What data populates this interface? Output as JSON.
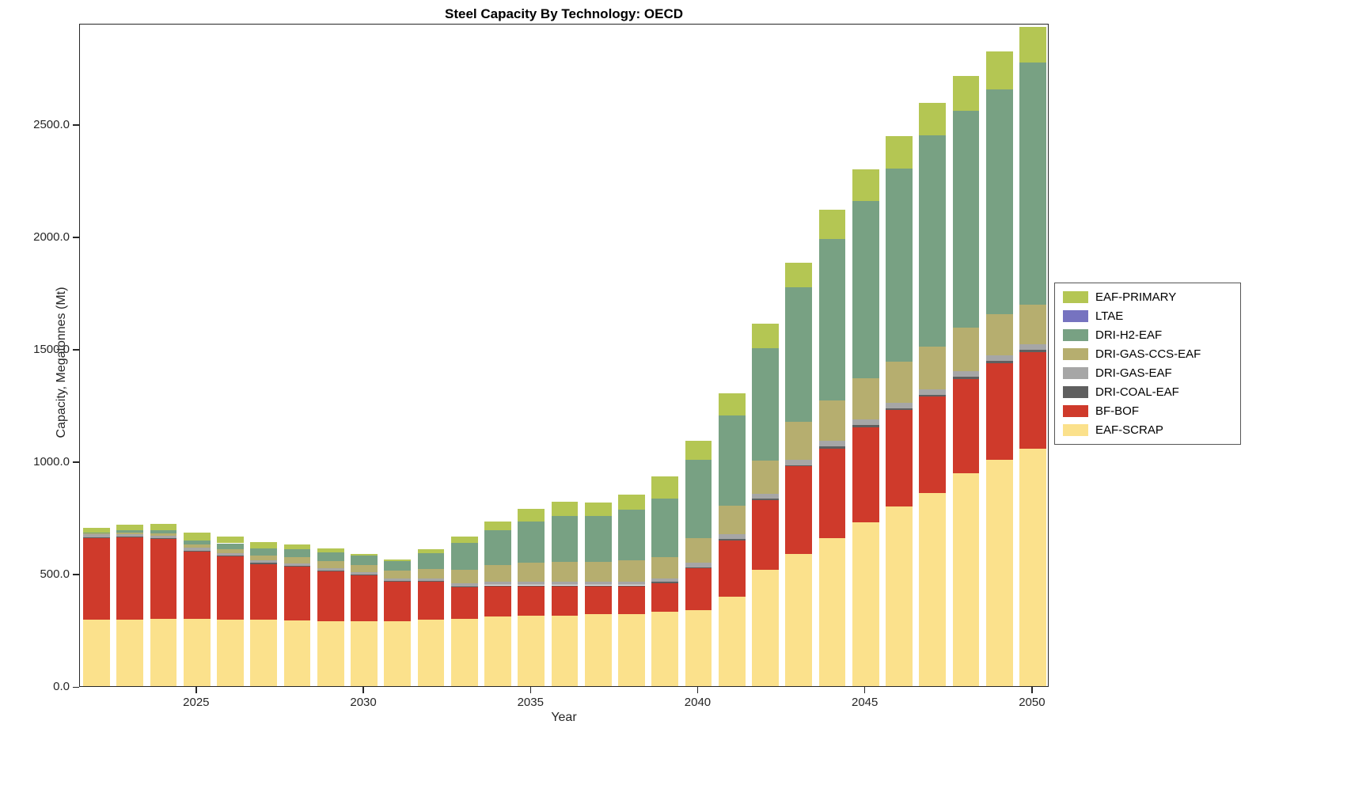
{
  "chart_data": {
    "type": "bar",
    "stacked": true,
    "title": "Steel Capacity By Technology: OECD",
    "xlabel": "Year",
    "ylabel": "Capacity, Megatonnes (Mt)",
    "ylim": [
      0,
      2950
    ],
    "grid": false,
    "legend_position": "right-outside",
    "yticks": [
      0,
      500,
      1000,
      1500,
      2000,
      2500
    ],
    "ytick_labels": [
      "0.0",
      "500.0",
      "1000.0",
      "1500.0",
      "2000.0",
      "2500.0"
    ],
    "xticks": [
      2025,
      2030,
      2035,
      2040,
      2045,
      2050
    ],
    "categories": [
      2022,
      2023,
      2024,
      2025,
      2026,
      2027,
      2028,
      2029,
      2030,
      2031,
      2032,
      2033,
      2034,
      2035,
      2036,
      2037,
      2038,
      2039,
      2040,
      2041,
      2042,
      2043,
      2044,
      2045,
      2046,
      2047,
      2048,
      2049,
      2050
    ],
    "series": [
      {
        "name": "EAF-SCRAP",
        "color": "#fbe18c",
        "values": [
          295,
          298,
          300,
          300,
          298,
          295,
          292,
          290,
          288,
          290,
          295,
          300,
          310,
          315,
          315,
          320,
          320,
          330,
          340,
          400,
          520,
          590,
          660,
          730,
          800,
          860,
          950,
          1010,
          1060
        ]
      },
      {
        "name": "BF-BOF",
        "color": "#cf3a2b",
        "values": [
          365,
          365,
          355,
          300,
          280,
          250,
          240,
          220,
          205,
          175,
          170,
          140,
          135,
          130,
          130,
          125,
          125,
          130,
          185,
          250,
          310,
          390,
          400,
          425,
          430,
          430,
          420,
          430,
          430
        ]
      },
      {
        "name": "DRI-COAL-EAF",
        "color": "#5f5f5f",
        "values": [
          4,
          4,
          4,
          4,
          4,
          4,
          4,
          4,
          4,
          4,
          4,
          5,
          5,
          5,
          5,
          5,
          5,
          5,
          6,
          6,
          6,
          6,
          8,
          8,
          8,
          10,
          10,
          10,
          10
        ]
      },
      {
        "name": "DRI-GAS-EAF",
        "color": "#a6a6a6",
        "values": [
          12,
          12,
          12,
          12,
          12,
          12,
          12,
          12,
          12,
          12,
          12,
          14,
          15,
          15,
          15,
          15,
          15,
          15,
          18,
          20,
          20,
          22,
          25,
          25,
          25,
          25,
          25,
          25,
          25
        ]
      },
      {
        "name": "DRI-GAS-CCS-EAF",
        "color": "#b6ae6f",
        "values": [
          4,
          6,
          10,
          14,
          18,
          22,
          26,
          30,
          32,
          35,
          42,
          60,
          75,
          85,
          90,
          90,
          95,
          95,
          110,
          130,
          150,
          170,
          180,
          185,
          185,
          190,
          195,
          185,
          175
        ]
      },
      {
        "name": "DRI-H2-EAF",
        "color": "#78a183",
        "values": [
          5,
          10,
          15,
          20,
          25,
          32,
          35,
          40,
          42,
          42,
          70,
          118,
          155,
          185,
          205,
          205,
          228,
          260,
          350,
          400,
          500,
          600,
          720,
          790,
          860,
          940,
          965,
          1000,
          1080
        ]
      },
      {
        "name": "LTAE",
        "color": "#7673c0",
        "values": [
          0,
          0,
          0,
          0,
          0,
          0,
          0,
          0,
          0,
          0,
          0,
          0,
          0,
          0,
          0,
          0,
          0,
          0,
          0,
          0,
          0,
          0,
          0,
          0,
          0,
          0,
          0,
          0,
          0
        ]
      },
      {
        "name": "EAF-PRIMARY",
        "color": "#b4c653",
        "values": [
          20,
          25,
          28,
          36,
          30,
          28,
          24,
          18,
          8,
          5,
          18,
          30,
          40,
          55,
          62,
          58,
          65,
          100,
          85,
          100,
          110,
          110,
          130,
          140,
          145,
          145,
          155,
          170,
          160
        ]
      }
    ],
    "legend": [
      {
        "label": "EAF-PRIMARY",
        "color": "#b4c653"
      },
      {
        "label": "LTAE",
        "color": "#7673c0"
      },
      {
        "label": "DRI-H2-EAF",
        "color": "#78a183"
      },
      {
        "label": "DRI-GAS-CCS-EAF",
        "color": "#b6ae6f"
      },
      {
        "label": "DRI-GAS-EAF",
        "color": "#a6a6a6"
      },
      {
        "label": "DRI-COAL-EAF",
        "color": "#5f5f5f"
      },
      {
        "label": "BF-BOF",
        "color": "#cf3a2b"
      },
      {
        "label": "EAF-SCRAP",
        "color": "#fbe18c"
      }
    ]
  }
}
